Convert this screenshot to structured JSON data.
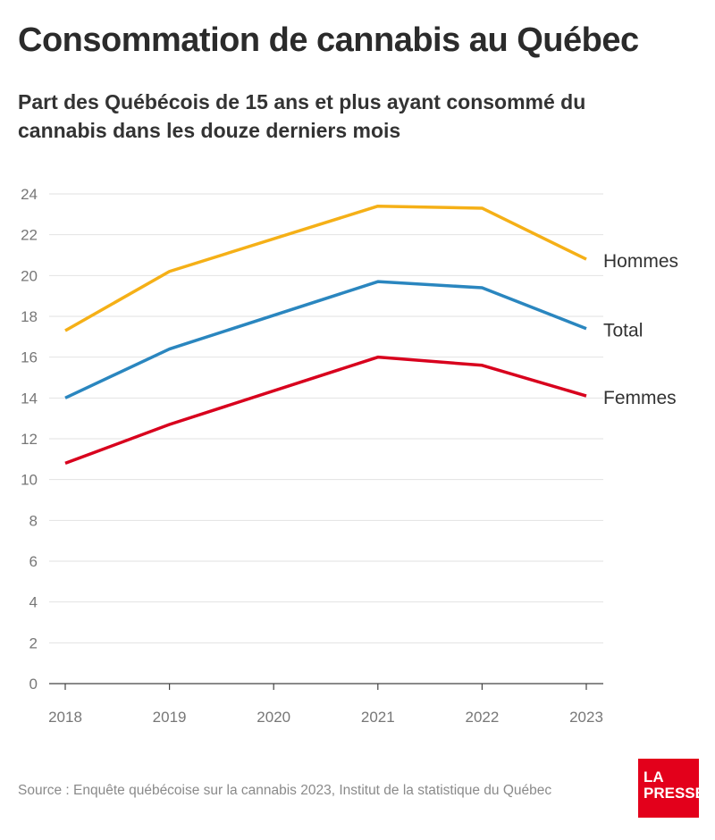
{
  "header": {
    "title": "Consommation de cannabis au Québec",
    "subtitle": "Part des Québécois de 15 ans et plus ayant consommé du cannabis dans les douze derniers mois"
  },
  "chart_data": {
    "type": "line",
    "title": "Consommation de cannabis au Québec",
    "subtitle": "Part des Québécois de 15 ans et plus ayant consommé du cannabis dans les douze derniers mois",
    "x": [
      2018,
      2019,
      2021,
      2022,
      2023
    ],
    "x_ticks": [
      "2018",
      "2019",
      "2020",
      "2021",
      "2022",
      "2023"
    ],
    "y_ticks": [
      0,
      2,
      4,
      6,
      8,
      10,
      12,
      14,
      16,
      18,
      20,
      22,
      24
    ],
    "ylim": [
      0,
      24
    ],
    "xlim": [
      2018,
      2023
    ],
    "grid": "horizontal",
    "legend": "direct labels at right",
    "series": [
      {
        "name": "Hommes",
        "color": "#f5b017",
        "values": [
          17.3,
          20.2,
          23.4,
          23.3,
          20.8
        ]
      },
      {
        "name": "Total",
        "color": "#2a86bf",
        "values": [
          14.0,
          16.4,
          19.7,
          19.4,
          17.4
        ]
      },
      {
        "name": "Femmes",
        "color": "#d8001d",
        "values": [
          10.8,
          12.7,
          16.0,
          15.6,
          14.1
        ]
      }
    ]
  },
  "footer": {
    "source": "Source : Enquête québécoise sur la cannabis 2023, Institut de la statistique du Québec",
    "logo_text": "LA PRESSE",
    "logo_color": "#e3001b"
  }
}
